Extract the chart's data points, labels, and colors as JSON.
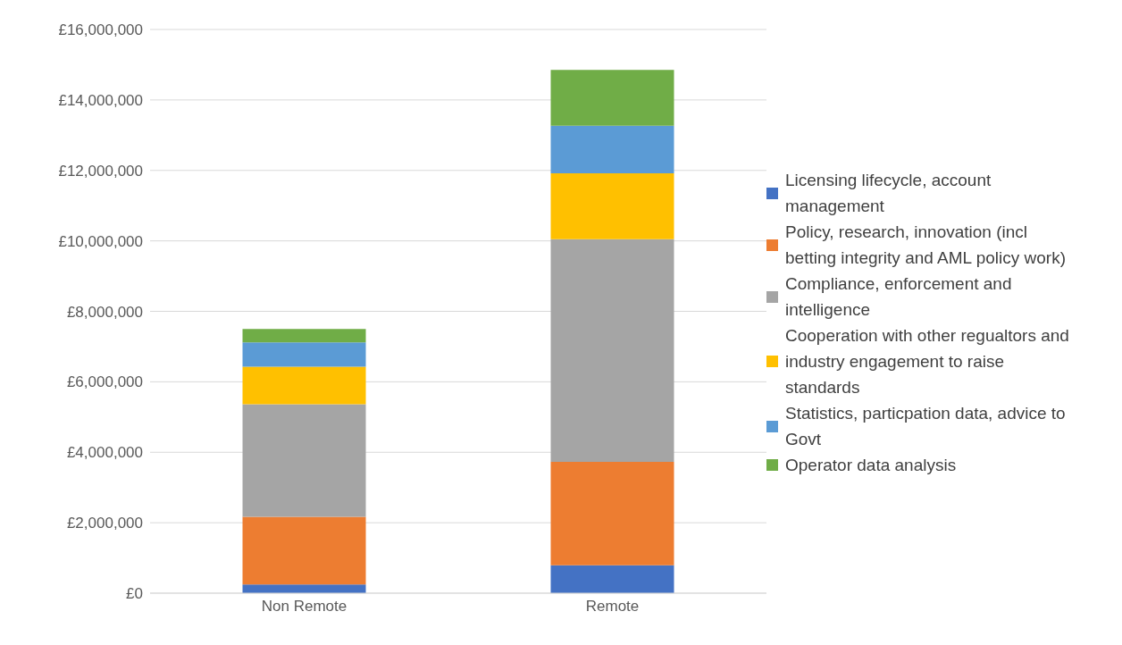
{
  "chart_data": {
    "type": "bar",
    "stacked": true,
    "categories": [
      "Non Remote",
      "Remote"
    ],
    "series": [
      {
        "name": "Licensing lifecycle, account management",
        "color": "#4472c4",
        "values": [
          250000,
          790000
        ]
      },
      {
        "name": "Policy, research, innovation (incl betting integrity and AML policy work)",
        "color": "#ed7d31",
        "values": [
          1920000,
          2940000
        ]
      },
      {
        "name": "Compliance, enforcement and intelligence",
        "color": "#a5a5a5",
        "values": [
          3190000,
          6320000
        ]
      },
      {
        "name": "Cooperation with other regualtors and industry engagement to raise standards",
        "color": "#ffc000",
        "values": [
          1070000,
          1870000
        ]
      },
      {
        "name": "Statistics, particpation data, advice to Govt",
        "color": "#5b9bd5",
        "values": [
          690000,
          1350000
        ]
      },
      {
        "name": "Operator data analysis",
        "color": "#70ad47",
        "values": [
          380000,
          1580000
        ]
      }
    ],
    "ylim": [
      0,
      16000000
    ],
    "yticks": [
      {
        "value": 0,
        "label": "£0"
      },
      {
        "value": 2000000,
        "label": "£2,000,000"
      },
      {
        "value": 4000000,
        "label": "£4,000,000"
      },
      {
        "value": 6000000,
        "label": "£6,000,000"
      },
      {
        "value": 8000000,
        "label": "£8,000,000"
      },
      {
        "value": 10000000,
        "label": "£10,000,000"
      },
      {
        "value": 12000000,
        "label": "£12,000,000"
      },
      {
        "value": 14000000,
        "label": "£14,000,000"
      },
      {
        "value": 16000000,
        "label": "£16,000,000"
      }
    ],
    "grid": "y",
    "legend": "right"
  }
}
